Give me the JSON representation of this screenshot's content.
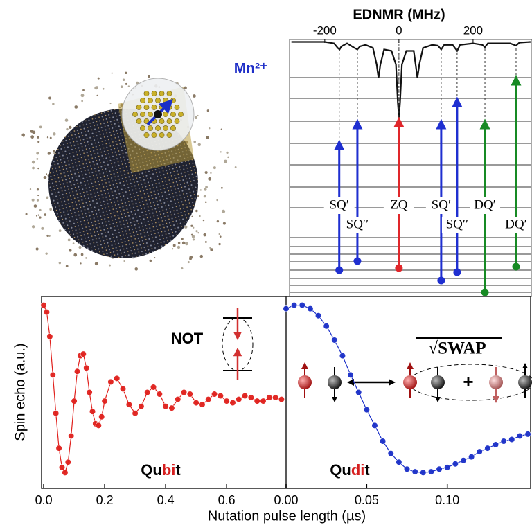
{
  "image_label": "Mn²⁺",
  "chart_data": [
    {
      "type": "line",
      "title": "EDNMR (MHz)",
      "color": "#111111",
      "x": [
        -290,
        -200,
        -175,
        -165,
        -160,
        -155,
        -140,
        -120,
        -112,
        -105,
        -90,
        -70,
        -60,
        -55,
        -50,
        -40,
        -20,
        -8,
        -3,
        0,
        3,
        8,
        20,
        40,
        45,
        50,
        55,
        65,
        90,
        105,
        114,
        122,
        145,
        157,
        165,
        200,
        225,
        232,
        240,
        300,
        316,
        325,
        355
      ],
      "values": [
        0,
        0,
        -0.02,
        -0.08,
        -0.1,
        -0.06,
        -0.02,
        -0.08,
        -0.1,
        -0.06,
        -0.04,
        -0.08,
        -0.3,
        -0.48,
        -0.3,
        -0.1,
        -0.12,
        -0.3,
        -0.8,
        -1.0,
        -0.8,
        -0.3,
        -0.12,
        -0.12,
        -0.3,
        -0.48,
        -0.3,
        -0.08,
        -0.04,
        -0.05,
        -0.1,
        -0.04,
        -0.04,
        -0.12,
        -0.04,
        -0.02,
        -0.04,
        -0.07,
        -0.02,
        -0.02,
        -0.05,
        -0.01,
        0
      ],
      "xlim": [
        -295,
        359
      ],
      "ylim": [
        -1.05,
        0.05
      ],
      "xticks": [
        -200,
        0,
        200
      ],
      "transitions": [
        {
          "label": "SQ′",
          "x": -161,
          "color": "#1f2fd0"
        },
        {
          "label": "SQ′′",
          "x": -112,
          "color": "#1f2fd0"
        },
        {
          "label": "ZQ",
          "x": 0,
          "color": "#e0262a"
        },
        {
          "label": "SQ′",
          "x": 114,
          "color": "#1f2fd0"
        },
        {
          "label": "SQ′′",
          "x": 157,
          "color": "#1f2fd0"
        },
        {
          "label": "DQ′",
          "x": 232,
          "color": "#178a24"
        },
        {
          "label": "DQ′",
          "x": 316,
          "color": "#178a24"
        }
      ]
    },
    {
      "type": "scatter",
      "color": "#e0201c",
      "ylabel": "Spin echo (a.u.)",
      "xlabel": "Nutation pulse length (µs)",
      "title_parts": [
        "Qu",
        "bi",
        "t"
      ],
      "annotation": "NOT",
      "x": [
        0,
        0.01,
        0.02,
        0.03,
        0.04,
        0.05,
        0.06,
        0.07,
        0.08,
        0.09,
        0.1,
        0.11,
        0.12,
        0.13,
        0.14,
        0.15,
        0.16,
        0.17,
        0.18,
        0.19,
        0.2,
        0.22,
        0.24,
        0.26,
        0.28,
        0.3,
        0.32,
        0.34,
        0.36,
        0.38,
        0.4,
        0.42,
        0.44,
        0.46,
        0.48,
        0.5,
        0.52,
        0.54,
        0.56,
        0.58,
        0.6,
        0.62,
        0.64,
        0.66,
        0.68,
        0.7,
        0.72,
        0.74,
        0.76,
        0.78
      ],
      "values": [
        1.0,
        0.96,
        0.82,
        0.6,
        0.38,
        0.18,
        0.07,
        0.04,
        0.1,
        0.25,
        0.45,
        0.62,
        0.71,
        0.72,
        0.64,
        0.5,
        0.39,
        0.32,
        0.31,
        0.36,
        0.45,
        0.56,
        0.58,
        0.52,
        0.43,
        0.38,
        0.42,
        0.5,
        0.53,
        0.49,
        0.42,
        0.41,
        0.46,
        0.5,
        0.49,
        0.44,
        0.43,
        0.46,
        0.49,
        0.48,
        0.45,
        0.44,
        0.46,
        0.48,
        0.47,
        0.45,
        0.45,
        0.47,
        0.47,
        0.46
      ],
      "xlim": [
        -0.007,
        0.795
      ],
      "ylim": [
        -0.05,
        1.05
      ],
      "xticks": [
        {
          "value": 0,
          "label": "0.0"
        },
        0.2,
        0.4,
        0.6
      ]
    },
    {
      "type": "scatter",
      "color": "#1a2fc8",
      "title_parts": [
        "Qu",
        "di",
        "t"
      ],
      "annotation": "√SWAP",
      "x": [
        0,
        0.005,
        0.01,
        0.015,
        0.02,
        0.025,
        0.03,
        0.035,
        0.04,
        0.045,
        0.05,
        0.055,
        0.06,
        0.065,
        0.07,
        0.075,
        0.08,
        0.085,
        0.09,
        0.095,
        0.1,
        0.105,
        0.11,
        0.115,
        0.12,
        0.125,
        0.13,
        0.135,
        0.14,
        0.145,
        0.15
      ],
      "values": [
        0.98,
        1.0,
        1.0,
        0.98,
        0.94,
        0.88,
        0.8,
        0.71,
        0.6,
        0.5,
        0.4,
        0.31,
        0.22,
        0.15,
        0.1,
        0.06,
        0.045,
        0.04,
        0.045,
        0.06,
        0.07,
        0.09,
        0.11,
        0.13,
        0.16,
        0.18,
        0.2,
        0.22,
        0.23,
        0.25,
        0.26
      ],
      "xlim": [
        0,
        0.1517
      ],
      "ylim": [
        -0.05,
        1.05
      ],
      "xticks": [
        {
          "value": 0,
          "label": "0.00"
        },
        0.05,
        {
          "value": 0.1,
          "label": "0.10"
        }
      ]
    }
  ]
}
